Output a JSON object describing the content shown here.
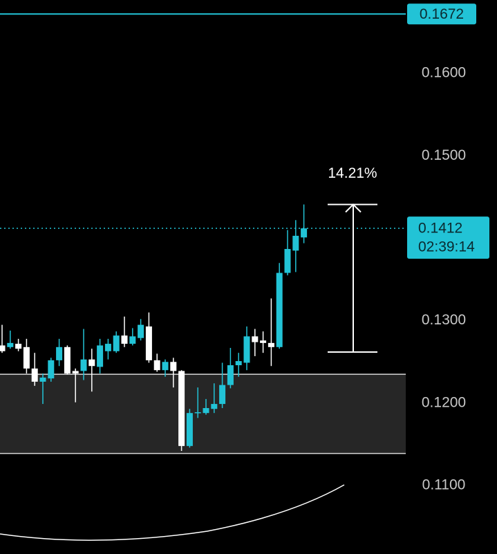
{
  "chart_data": {
    "type": "candlestick",
    "open": [
      0.127,
      0.1268,
      0.1272,
      0.1268,
      0.1242,
      0.1226,
      0.123,
      0.1252,
      0.1268,
      0.1239,
      0.1239,
      0.1253,
      0.1244,
      0.1263,
      0.1263,
      0.1282,
      0.1272,
      0.1279,
      0.1293,
      0.1252,
      0.124,
      0.125,
      0.1239,
      0.1148,
      0.1188,
      0.1188,
      0.1193,
      0.1199,
      0.1222,
      0.1246,
      0.1249,
      0.1281,
      0.1276,
      0.1273,
      0.1268,
      0.1358,
      0.1385,
      0.1401
    ],
    "high": [
      0.1295,
      0.1288,
      0.1278,
      0.1278,
      0.1261,
      0.1236,
      0.1255,
      0.1278,
      0.127,
      0.1242,
      0.129,
      0.1266,
      0.1278,
      0.1278,
      0.1287,
      0.1305,
      0.1291,
      0.1302,
      0.131,
      0.126,
      0.1253,
      0.1255,
      0.124,
      0.1193,
      0.1219,
      0.1205,
      0.1224,
      0.1249,
      0.1267,
      0.1261,
      0.1293,
      0.129,
      0.1287,
      0.1327,
      0.137,
      0.141,
      0.1422,
      0.1441
    ],
    "low": [
      0.1261,
      0.1266,
      0.1263,
      0.1236,
      0.1221,
      0.1199,
      0.1226,
      0.1245,
      0.1235,
      0.1201,
      0.1228,
      0.1214,
      0.1236,
      0.1253,
      0.1261,
      0.1268,
      0.127,
      0.1276,
      0.1249,
      0.1238,
      0.1232,
      0.1219,
      0.1142,
      0.1146,
      0.1182,
      0.1186,
      0.1188,
      0.1194,
      0.1218,
      0.1232,
      0.124,
      0.1257,
      0.1261,
      0.1245,
      0.1266,
      0.1355,
      0.1359,
      0.1394
    ],
    "close": [
      0.1263,
      0.1273,
      0.1266,
      0.1242,
      0.1226,
      0.1231,
      0.1252,
      0.1268,
      0.1236,
      0.1236,
      0.1253,
      0.1245,
      0.127,
      0.1272,
      0.1282,
      0.1272,
      0.1281,
      0.1295,
      0.1252,
      0.124,
      0.125,
      0.1239,
      0.1148,
      0.1188,
      0.1189,
      0.1194,
      0.1199,
      0.1222,
      0.1246,
      0.1251,
      0.1281,
      0.1274,
      0.1273,
      0.1268,
      0.1358,
      0.1387,
      0.1403,
      0.1412
    ],
    "up_color": "#22c3d6",
    "down_color": "#ffffff",
    "ylim": [
      0.1017,
      0.1689
    ],
    "yticks": [
      {
        "value": 0.16,
        "label": "0.1600"
      },
      {
        "value": 0.15,
        "label": "0.1500"
      },
      {
        "value": 0.13,
        "label": "0.1300"
      },
      {
        "value": 0.12,
        "label": "0.1200"
      },
      {
        "value": 0.11,
        "label": "0.1100"
      }
    ],
    "price_line": {
      "value": 0.1672,
      "color": "#22c3d6"
    },
    "last_price": {
      "value": 0.1412,
      "countdown": "02:39:14"
    },
    "zone": {
      "low": 0.1139,
      "high": 0.1235
    },
    "measure": {
      "from": 0.1262,
      "to": 0.1441,
      "label": "14.21%"
    }
  }
}
